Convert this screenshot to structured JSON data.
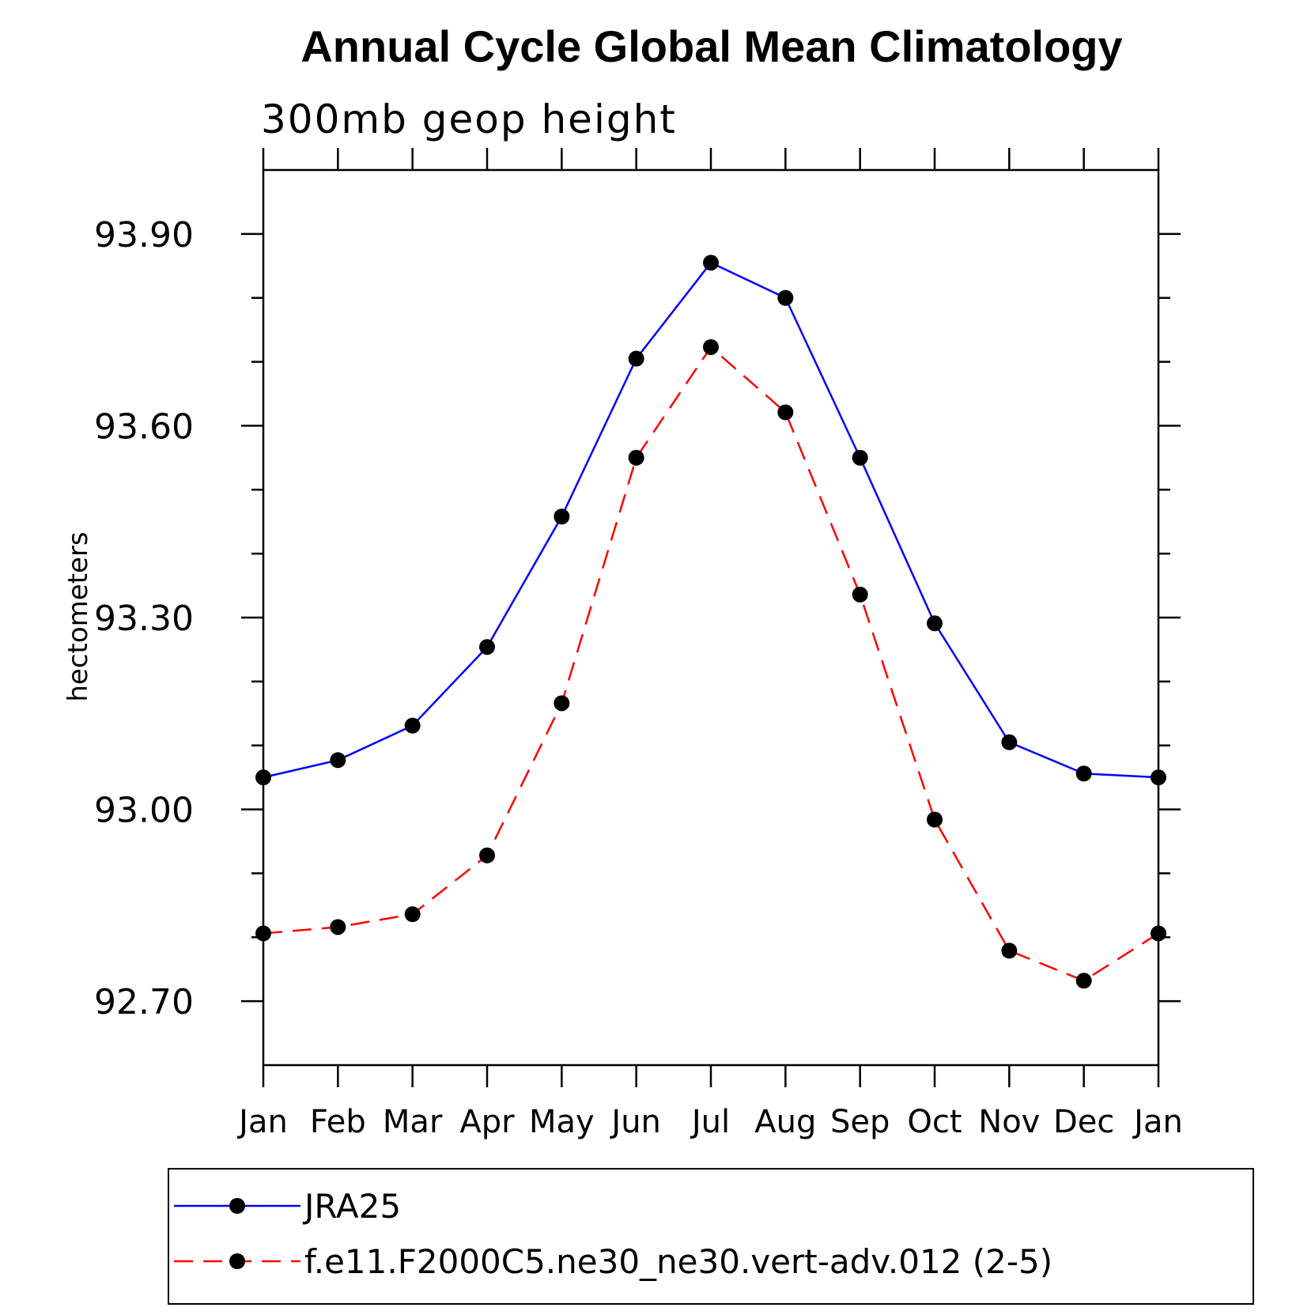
{
  "chart_data": {
    "type": "line",
    "title": "Annual Cycle Global Mean Climatology",
    "subtitle": "300mb geop height",
    "ylabel": "hectometers",
    "xlabel": "",
    "categories": [
      "Jan",
      "Feb",
      "Mar",
      "Apr",
      "May",
      "Jun",
      "Jul",
      "Aug",
      "Sep",
      "Oct",
      "Nov",
      "Dec",
      "Jan"
    ],
    "ylim": [
      92.6,
      94.0
    ],
    "yticks": [
      "93.90",
      "93.60",
      "93.30",
      "93.00",
      "92.70"
    ],
    "ytick_values": [
      93.9,
      93.6,
      93.3,
      93.0,
      92.7
    ],
    "legend_position": "bottom",
    "series": [
      {
        "name": "JRA25",
        "color": "#0000ff",
        "dash": "solid",
        "values": [
          93.05,
          93.077,
          93.131,
          93.254,
          93.458,
          93.705,
          93.855,
          93.8,
          93.55,
          93.291,
          93.105,
          93.056,
          93.05
        ]
      },
      {
        "name": "f.e11.F2000C5.ne30_ne30.vert-adv.012 (2-5)",
        "color": "#ff0000",
        "dash": "dashed",
        "values": [
          92.806,
          92.816,
          92.836,
          92.928,
          93.166,
          93.55,
          93.723,
          93.621,
          93.336,
          92.984,
          92.779,
          92.732,
          92.806
        ]
      }
    ]
  }
}
